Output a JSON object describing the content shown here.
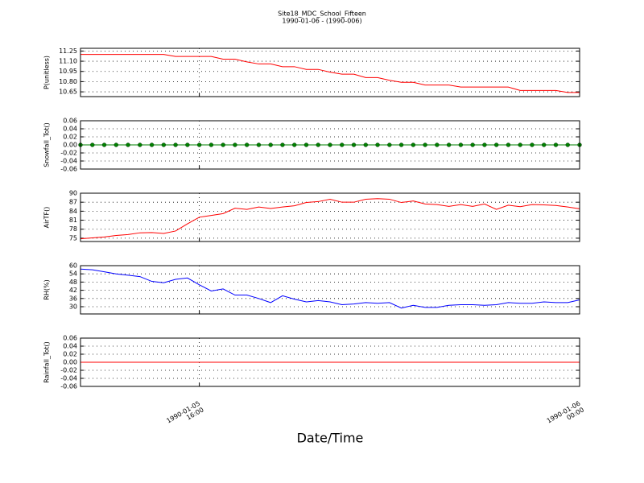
{
  "title": "Site18_MDC_School_Fifteen",
  "subtitle": "1990-01-06 - (1990-006)",
  "x_label": "Date/Time",
  "chart_data": [
    {
      "type": "line",
      "y_label": "P(unitless)",
      "color": "#ff0000",
      "grid": true,
      "x": [
        "1990-01-05 13:30",
        "1990-01-05 13:45",
        "1990-01-05 14:00",
        "1990-01-05 14:15",
        "1990-01-05 14:30",
        "1990-01-05 14:45",
        "1990-01-05 15:00",
        "1990-01-05 15:15",
        "1990-01-05 15:30",
        "1990-01-05 15:45",
        "1990-01-05 16:00",
        "1990-01-05 16:15",
        "1990-01-05 16:30",
        "1990-01-05 16:45",
        "1990-01-05 17:00",
        "1990-01-05 17:15",
        "1990-01-05 17:30",
        "1990-01-05 17:45",
        "1990-01-05 18:00",
        "1990-01-05 18:15",
        "1990-01-05 18:30",
        "1990-01-05 18:45",
        "1990-01-05 19:00",
        "1990-01-05 19:15",
        "1990-01-05 19:30",
        "1990-01-05 19:45",
        "1990-01-05 20:00",
        "1990-01-05 20:15",
        "1990-01-05 20:30",
        "1990-01-05 20:45",
        "1990-01-05 21:00",
        "1990-01-05 21:15",
        "1990-01-05 21:30",
        "1990-01-05 21:45",
        "1990-01-05 22:00",
        "1990-01-05 22:15",
        "1990-01-05 22:30",
        "1990-01-05 22:45",
        "1990-01-05 23:00",
        "1990-01-05 23:15",
        "1990-01-05 23:30",
        "1990-01-05 23:45",
        "1990-01-06 00:00"
      ],
      "values": [
        11.2,
        11.2,
        11.2,
        11.2,
        11.2,
        11.2,
        11.2,
        11.2,
        11.17,
        11.17,
        11.17,
        11.17,
        11.13,
        11.13,
        11.09,
        11.06,
        11.06,
        11.02,
        11.02,
        10.98,
        10.98,
        10.94,
        10.91,
        10.91,
        10.86,
        10.86,
        10.82,
        10.79,
        10.79,
        10.75,
        10.75,
        10.75,
        10.72,
        10.72,
        10.72,
        10.72,
        10.72,
        10.67,
        10.67,
        10.67,
        10.67,
        10.64,
        10.64
      ],
      "xlim": [
        "1990-01-05 13:30",
        "1990-01-06 00:00"
      ],
      "xticks": [
        "1990-01-05 16:00",
        "1990-01-06 00:00"
      ],
      "ylim": [
        10.58,
        11.29
      ],
      "yticks": [
        {
          "value": 10.65,
          "label": "10.65"
        },
        {
          "value": 10.8,
          "label": "10.80"
        },
        {
          "value": 10.95,
          "label": "10.95"
        },
        {
          "value": 11.1,
          "label": "11.10"
        },
        {
          "value": 11.25,
          "label": "11.25"
        }
      ]
    },
    {
      "type": "line",
      "y_label": "Snowfall_Tot()",
      "color": "#008000",
      "markers": true,
      "grid": true,
      "x": [
        "1990-01-05 13:30",
        "1990-01-05 13:45",
        "1990-01-05 14:00",
        "1990-01-05 14:15",
        "1990-01-05 14:30",
        "1990-01-05 14:45",
        "1990-01-05 15:00",
        "1990-01-05 15:15",
        "1990-01-05 15:30",
        "1990-01-05 15:45",
        "1990-01-05 16:00",
        "1990-01-05 16:15",
        "1990-01-05 16:30",
        "1990-01-05 16:45",
        "1990-01-05 17:00",
        "1990-01-05 17:15",
        "1990-01-05 17:30",
        "1990-01-05 17:45",
        "1990-01-05 18:00",
        "1990-01-05 18:15",
        "1990-01-05 18:30",
        "1990-01-05 18:45",
        "1990-01-05 19:00",
        "1990-01-05 19:15",
        "1990-01-05 19:30",
        "1990-01-05 19:45",
        "1990-01-05 20:00",
        "1990-01-05 20:15",
        "1990-01-05 20:30",
        "1990-01-05 20:45",
        "1990-01-05 21:00",
        "1990-01-05 21:15",
        "1990-01-05 21:30",
        "1990-01-05 21:45",
        "1990-01-05 22:00",
        "1990-01-05 22:15",
        "1990-01-05 22:30",
        "1990-01-05 22:45",
        "1990-01-05 23:00",
        "1990-01-05 23:15",
        "1990-01-05 23:30",
        "1990-01-05 23:45",
        "1990-01-06 00:00"
      ],
      "values": [
        0,
        0,
        0,
        0,
        0,
        0,
        0,
        0,
        0,
        0,
        0,
        0,
        0,
        0,
        0,
        0,
        0,
        0,
        0,
        0,
        0,
        0,
        0,
        0,
        0,
        0,
        0,
        0,
        0,
        0,
        0,
        0,
        0,
        0,
        0,
        0,
        0,
        0,
        0,
        0,
        0,
        0,
        0
      ],
      "xlim": [
        "1990-01-05 13:30",
        "1990-01-06 00:00"
      ],
      "xticks": [
        "1990-01-05 16:00",
        "1990-01-06 00:00"
      ],
      "ylim": [
        -0.06,
        0.06
      ],
      "yticks": [
        -0.06,
        -0.04,
        -0.02,
        {
          "value": 0,
          "label": "0.00"
        },
        0.02,
        0.04,
        0.06
      ]
    },
    {
      "type": "line",
      "y_label": "AirTF()",
      "color": "#ff0000",
      "grid": true,
      "x": [
        "1990-01-05 13:30",
        "1990-01-05 13:45",
        "1990-01-05 14:00",
        "1990-01-05 14:15",
        "1990-01-05 14:30",
        "1990-01-05 14:45",
        "1990-01-05 15:00",
        "1990-01-05 15:15",
        "1990-01-05 15:30",
        "1990-01-05 15:45",
        "1990-01-05 16:00",
        "1990-01-05 16:15",
        "1990-01-05 16:30",
        "1990-01-05 16:45",
        "1990-01-05 17:00",
        "1990-01-05 17:15",
        "1990-01-05 17:30",
        "1990-01-05 17:45",
        "1990-01-05 18:00",
        "1990-01-05 18:15",
        "1990-01-05 18:30",
        "1990-01-05 18:45",
        "1990-01-05 19:00",
        "1990-01-05 19:15",
        "1990-01-05 19:30",
        "1990-01-05 19:45",
        "1990-01-05 20:00",
        "1990-01-05 20:15",
        "1990-01-05 20:30",
        "1990-01-05 20:45",
        "1990-01-05 21:00",
        "1990-01-05 21:15",
        "1990-01-05 21:30",
        "1990-01-05 21:45",
        "1990-01-05 22:00",
        "1990-01-05 22:15",
        "1990-01-05 22:30",
        "1990-01-05 22:45",
        "1990-01-05 23:00",
        "1990-01-05 23:15",
        "1990-01-05 23:30",
        "1990-01-05 23:45",
        "1990-01-06 00:00"
      ],
      "values": [
        74.8,
        75.1,
        75.4,
        75.9,
        76.2,
        76.8,
        76.9,
        76.6,
        77.4,
        79.8,
        82.0,
        82.6,
        83.2,
        85.0,
        84.6,
        85.4,
        84.9,
        85.4,
        85.8,
        86.9,
        87.2,
        88.0,
        87.0,
        87.0,
        88.0,
        88.2,
        88.0,
        86.9,
        87.4,
        86.4,
        86.2,
        85.6,
        86.2,
        85.6,
        86.4,
        84.6,
        86.0,
        85.5,
        86.2,
        86.1,
        85.9,
        85.4,
        84.8
      ],
      "xlim": [
        "1990-01-05 13:30",
        "1990-01-06 00:00"
      ],
      "xticks": [
        "1990-01-05 16:00",
        "1990-01-06 00:00"
      ],
      "ylim": [
        73.9,
        90
      ],
      "yticks": [
        75,
        78,
        81,
        84,
        87,
        90
      ]
    },
    {
      "type": "line",
      "y_label": "RH(%)",
      "color": "#0000ff",
      "grid": true,
      "x": [
        "1990-01-05 13:30",
        "1990-01-05 13:45",
        "1990-01-05 14:00",
        "1990-01-05 14:15",
        "1990-01-05 14:30",
        "1990-01-05 14:45",
        "1990-01-05 15:00",
        "1990-01-05 15:15",
        "1990-01-05 15:30",
        "1990-01-05 15:45",
        "1990-01-05 16:00",
        "1990-01-05 16:15",
        "1990-01-05 16:30",
        "1990-01-05 16:45",
        "1990-01-05 17:00",
        "1990-01-05 17:15",
        "1990-01-05 17:30",
        "1990-01-05 17:45",
        "1990-01-05 18:00",
        "1990-01-05 18:15",
        "1990-01-05 18:30",
        "1990-01-05 18:45",
        "1990-01-05 19:00",
        "1990-01-05 19:15",
        "1990-01-05 19:30",
        "1990-01-05 19:45",
        "1990-01-05 20:00",
        "1990-01-05 20:15",
        "1990-01-05 20:30",
        "1990-01-05 20:45",
        "1990-01-05 21:00",
        "1990-01-05 21:15",
        "1990-01-05 21:30",
        "1990-01-05 21:45",
        "1990-01-05 22:00",
        "1990-01-05 22:15",
        "1990-01-05 22:30",
        "1990-01-05 22:45",
        "1990-01-05 23:00",
        "1990-01-05 23:15",
        "1990-01-05 23:30",
        "1990-01-05 23:45",
        "1990-01-06 00:00"
      ],
      "values": [
        57.5,
        57,
        55.5,
        54,
        53,
        52,
        48.5,
        47.5,
        50,
        51,
        46,
        41.5,
        43,
        38.5,
        38.5,
        36,
        33,
        38,
        35.5,
        33.5,
        34.5,
        33.5,
        31.5,
        32,
        33,
        32.5,
        33,
        29,
        31,
        29.5,
        29.5,
        31,
        31.5,
        31.5,
        31,
        31.5,
        33,
        32.5,
        32.5,
        33.5,
        33,
        33,
        35
      ],
      "xlim": [
        "1990-01-05 13:30",
        "1990-01-06 00:00"
      ],
      "xticks": [
        "1990-01-05 16:00",
        "1990-01-06 00:00"
      ],
      "ylim": [
        24.7,
        60
      ],
      "yticks": [
        30,
        36,
        42,
        48,
        54,
        60
      ]
    },
    {
      "type": "line",
      "y_label": "Rainfall_Tot()",
      "color": "#ff0000",
      "grid": true,
      "x_tick_labels": true,
      "x": [
        "1990-01-05 13:30",
        "1990-01-05 13:45",
        "1990-01-05 14:00",
        "1990-01-05 14:15",
        "1990-01-05 14:30",
        "1990-01-05 14:45",
        "1990-01-05 15:00",
        "1990-01-05 15:15",
        "1990-01-05 15:30",
        "1990-01-05 15:45",
        "1990-01-05 16:00",
        "1990-01-05 16:15",
        "1990-01-05 16:30",
        "1990-01-05 16:45",
        "1990-01-05 17:00",
        "1990-01-05 17:15",
        "1990-01-05 17:30",
        "1990-01-05 17:45",
        "1990-01-05 18:00",
        "1990-01-05 18:15",
        "1990-01-05 18:30",
        "1990-01-05 18:45",
        "1990-01-05 19:00",
        "1990-01-05 19:15",
        "1990-01-05 19:30",
        "1990-01-05 19:45",
        "1990-01-05 20:00",
        "1990-01-05 20:15",
        "1990-01-05 20:30",
        "1990-01-05 20:45",
        "1990-01-05 21:00",
        "1990-01-05 21:15",
        "1990-01-05 21:30",
        "1990-01-05 21:45",
        "1990-01-05 22:00",
        "1990-01-05 22:15",
        "1990-01-05 22:30",
        "1990-01-05 22:45",
        "1990-01-05 23:00",
        "1990-01-05 23:15",
        "1990-01-05 23:30",
        "1990-01-05 23:45",
        "1990-01-06 00:00"
      ],
      "values": [
        0,
        0,
        0,
        0,
        0,
        0,
        0,
        0,
        0,
        0,
        0,
        0,
        0,
        0,
        0,
        0,
        0,
        0,
        0,
        0,
        0,
        0,
        0,
        0,
        0,
        0,
        0,
        0,
        0,
        0,
        0,
        0,
        0,
        0,
        0,
        0,
        0,
        0,
        0,
        0,
        0,
        0,
        0
      ],
      "xlim": [
        "1990-01-05 13:30",
        "1990-01-06 00:00"
      ],
      "xticks": [
        "1990-01-05 16:00",
        "1990-01-06 00:00"
      ],
      "ylim": [
        -0.06,
        0.06
      ],
      "yticks": [
        -0.06,
        -0.04,
        -0.02,
        {
          "value": 0,
          "label": "0.00"
        },
        0.02,
        0.04,
        0.06
      ]
    }
  ]
}
